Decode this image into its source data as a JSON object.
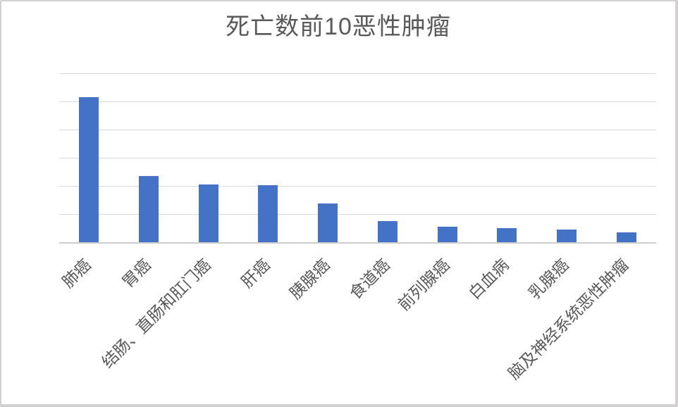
{
  "chart_data": {
    "type": "bar",
    "title": "死亡数前10恶性肿瘤",
    "categories": [
      "肺癌",
      "胃癌",
      "结肠、直肠和肛门癌",
      "肝癌",
      "胰腺癌",
      "食道癌",
      "前列腺癌",
      "白血病",
      "乳腺癌",
      "脑及神经系统恶性肿瘤"
    ],
    "values": [
      5.14,
      2.35,
      2.06,
      2.03,
      1.37,
      0.74,
      0.56,
      0.49,
      0.44,
      0.36
    ],
    "values_unit": "gridline intervals (no y-axis tick labels are shown in the chart; values estimated from unlabeled gridlines)",
    "xlabel": "",
    "ylabel": "",
    "ylim": [
      0,
      6
    ],
    "gridline_interval": 1,
    "gridlines": "horizontal",
    "y_tick_labels_visible": false,
    "legend": "none",
    "x_label_rotation_deg": 45,
    "colors": {
      "bar": "#4472C4",
      "gridline": "#D9D9D9",
      "axis_line": "#D0CECE",
      "title_text": "#595959",
      "label_text": "#595959",
      "background": "#FFFFFF",
      "frame_border": "#D2D0D0"
    }
  }
}
